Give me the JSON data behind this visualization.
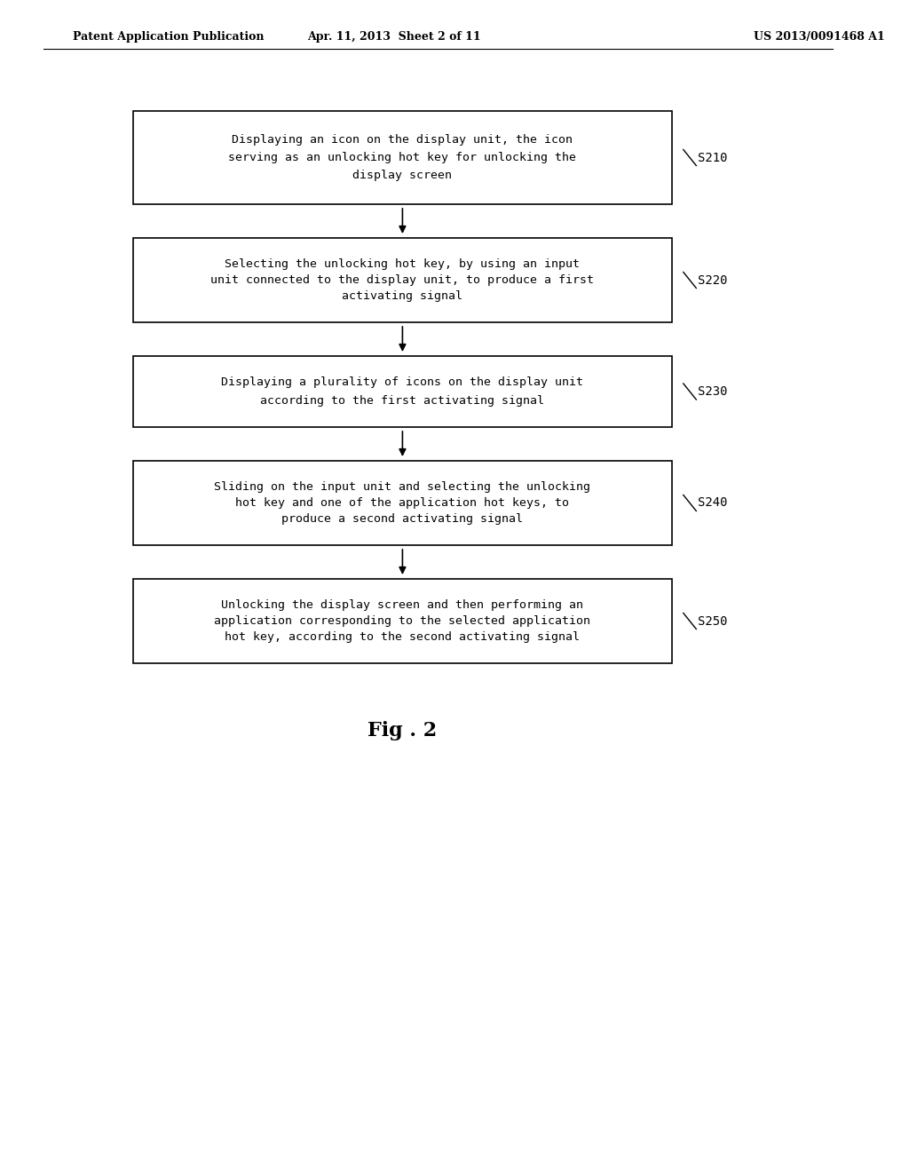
{
  "header_left": "Patent Application Publication",
  "header_mid": "Apr. 11, 2013  Sheet 2 of 11",
  "header_right": "US 2013/0091468 A1",
  "fig_label": "Fig . 2",
  "background_color": "#ffffff",
  "box_edge_color": "#000000",
  "text_color": "#000000",
  "boxes": [
    {
      "id": "S210",
      "label": "S210",
      "lines": [
        "Displaying an icon on the display unit, the icon",
        "serving as an unlocking hot key for unlocking the",
        "display screen"
      ]
    },
    {
      "id": "S220",
      "label": "S220",
      "lines": [
        "Selecting the unlocking hot key, by using an input",
        "unit connected to the display unit, to produce a first",
        "activating signal"
      ]
    },
    {
      "id": "S230",
      "label": "S230",
      "lines": [
        "Displaying a plurality of icons on the display unit",
        "according to the first activating signal"
      ]
    },
    {
      "id": "S240",
      "label": "S240",
      "lines": [
        "Sliding on the input unit and selecting the unlocking",
        "hot key and one of the application hot keys, to",
        "produce a second activating signal"
      ]
    },
    {
      "id": "S250",
      "label": "S250",
      "lines": [
        "Unlocking the display screen and then performing an",
        "application corresponding to the selected application",
        "hot key, according to the second activating signal"
      ]
    }
  ]
}
